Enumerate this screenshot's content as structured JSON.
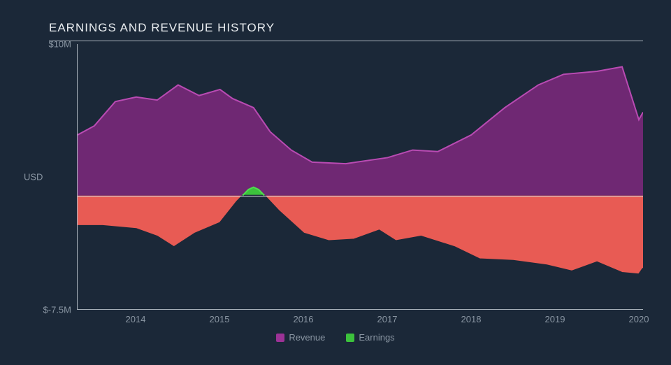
{
  "chart": {
    "type": "area",
    "title": "EARNINGS AND REVENUE HISTORY",
    "title_color": "#e8ecef",
    "title_fontsize": 17,
    "background_color": "#1b2838",
    "axis_color": "#aab3bc",
    "tick_color": "#8a96a3",
    "tick_fontsize": 13,
    "zeroline_color": "#d6dbe0",
    "ylabel": "USD",
    "ylim": [
      -7.5,
      10
    ],
    "yticks": [
      {
        "value": 10,
        "label": "$10M"
      },
      {
        "value": -7.5,
        "label": "$-7.5M"
      }
    ],
    "xlim": [
      2013.3,
      2020.05
    ],
    "xticks": [
      2014,
      2015,
      2016,
      2017,
      2018,
      2019,
      2020
    ],
    "series": {
      "revenue": {
        "label": "Revenue",
        "fill_color": "#6f2873",
        "stroke_color": "#b94bb3",
        "stroke_width": 2,
        "data": [
          [
            2013.3,
            4.0
          ],
          [
            2013.5,
            4.6
          ],
          [
            2013.75,
            6.2
          ],
          [
            2014.0,
            6.5
          ],
          [
            2014.25,
            6.3
          ],
          [
            2014.5,
            7.3
          ],
          [
            2014.75,
            6.6
          ],
          [
            2015.0,
            7.0
          ],
          [
            2015.15,
            6.4
          ],
          [
            2015.4,
            5.8
          ],
          [
            2015.6,
            4.2
          ],
          [
            2015.85,
            3.0
          ],
          [
            2016.1,
            2.2
          ],
          [
            2016.5,
            2.1
          ],
          [
            2017.0,
            2.5
          ],
          [
            2017.3,
            3.0
          ],
          [
            2017.6,
            2.9
          ],
          [
            2018.0,
            4.0
          ],
          [
            2018.4,
            5.8
          ],
          [
            2018.8,
            7.3
          ],
          [
            2019.1,
            8.0
          ],
          [
            2019.5,
            8.2
          ],
          [
            2019.8,
            8.5
          ],
          [
            2020.0,
            5.0
          ],
          [
            2020.05,
            5.5
          ]
        ]
      },
      "earnings_pos": {
        "label": "Earnings",
        "fill_color": "#3cc23c",
        "stroke_color": "#4de04d",
        "stroke_width": 2,
        "data": [
          [
            2015.27,
            0.0
          ],
          [
            2015.34,
            0.4
          ],
          [
            2015.4,
            0.55
          ],
          [
            2015.46,
            0.4
          ],
          [
            2015.53,
            0.0
          ]
        ]
      },
      "earnings_neg": {
        "fill_color": "#e85b54",
        "stroke_color": "#1b2838",
        "stroke_width": 2,
        "data": [
          [
            2013.3,
            -2.0
          ],
          [
            2013.6,
            -2.0
          ],
          [
            2014.0,
            -2.2
          ],
          [
            2014.25,
            -2.7
          ],
          [
            2014.45,
            -3.4
          ],
          [
            2014.7,
            -2.5
          ],
          [
            2015.0,
            -1.8
          ],
          [
            2015.2,
            -0.4
          ],
          [
            2015.27,
            0.0
          ],
          [
            2015.53,
            0.0
          ],
          [
            2015.7,
            -1.0
          ],
          [
            2016.0,
            -2.5
          ],
          [
            2016.3,
            -3.0
          ],
          [
            2016.6,
            -2.9
          ],
          [
            2016.9,
            -2.3
          ],
          [
            2017.1,
            -3.0
          ],
          [
            2017.4,
            -2.7
          ],
          [
            2017.8,
            -3.4
          ],
          [
            2018.1,
            -4.2
          ],
          [
            2018.5,
            -4.3
          ],
          [
            2018.9,
            -4.6
          ],
          [
            2019.2,
            -5.0
          ],
          [
            2019.5,
            -4.4
          ],
          [
            2019.8,
            -5.1
          ],
          [
            2020.0,
            -5.2
          ],
          [
            2020.05,
            -4.8
          ]
        ]
      }
    },
    "legend": [
      {
        "label": "Revenue",
        "color": "#9c3296"
      },
      {
        "label": "Earnings",
        "color": "#3cc23c"
      }
    ]
  }
}
